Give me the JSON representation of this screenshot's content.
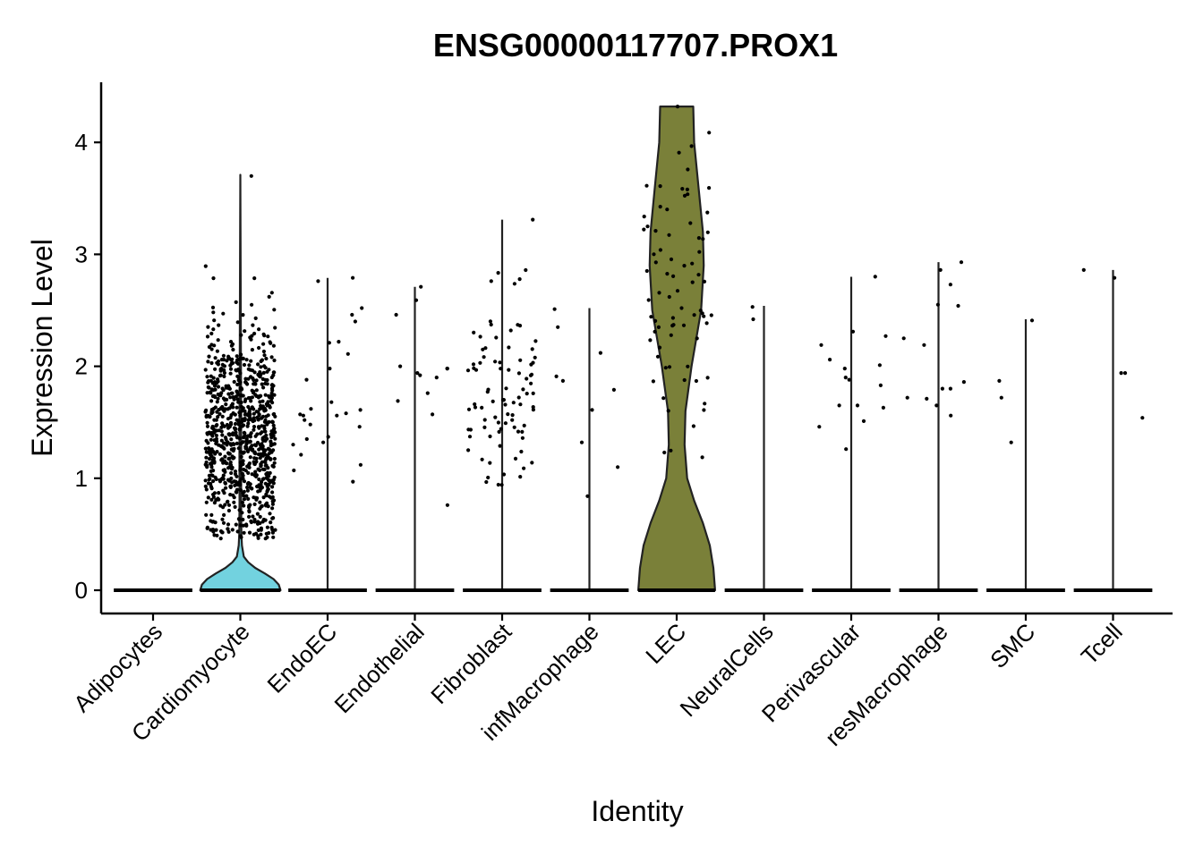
{
  "chart_data": {
    "type": "violin",
    "title": "ENSG00000117707.PROX1",
    "xlabel": "Identity",
    "ylabel": "Expression Level",
    "ylim": [
      -0.2,
      4.55
    ],
    "yticks": [
      0,
      1,
      2,
      3,
      4
    ],
    "legend": "none",
    "grid": false,
    "categories": [
      "Adipocytes",
      "Cardiomyocyte",
      "EndoEC",
      "Endothelial",
      "Fibroblast",
      "infMacrophage",
      "LEC",
      "NeuralCells",
      "Perivascular",
      "resMacrophage",
      "SMC",
      "Tcell"
    ],
    "series": [
      {
        "category": "Adipocytes",
        "color": "#ffffff",
        "max": 0,
        "violin_half_width": [
          [
            0,
            0.45
          ]
        ],
        "points": []
      },
      {
        "category": "Cardiomyocyte",
        "color": "#72d2df",
        "max": 3.71,
        "violin_half_width": [
          [
            0,
            0.46
          ],
          [
            0.05,
            0.44
          ],
          [
            0.1,
            0.38
          ],
          [
            0.15,
            0.28
          ],
          [
            0.2,
            0.17
          ],
          [
            0.25,
            0.09
          ],
          [
            0.3,
            0.04
          ],
          [
            0.4,
            0.018
          ],
          [
            0.5,
            0.012
          ],
          [
            0.8,
            0.009
          ],
          [
            1.2,
            0.01
          ],
          [
            1.6,
            0.009
          ],
          [
            2.2,
            0.006
          ],
          [
            3.0,
            0.003
          ],
          [
            3.71,
            0
          ]
        ],
        "points_jitter": {
          "n": 900,
          "min": 0.46,
          "max": 3.7,
          "mean": 1.35,
          "sd": 0.48
        }
      },
      {
        "category": "EndoEC",
        "color": "#ffffff",
        "max": 2.79,
        "violin_half_width": [
          [
            0,
            0.45
          ]
        ],
        "points": [
          2.76,
          2.79,
          2.21,
          1.98,
          1.48,
          1.3,
          1.32,
          1.12,
          1.07,
          1.21,
          0.97,
          2.22,
          2.11,
          1.61,
          1.56,
          1.46,
          1.57,
          1.68,
          2.4,
          1.62,
          1.35,
          1.37,
          1.52,
          1.88,
          2.52,
          2.46,
          1.58,
          1.56
        ]
      },
      {
        "category": "Endothelial",
        "color": "#ffffff",
        "max": 2.71,
        "violin_half_width": [
          [
            0,
            0.45
          ]
        ],
        "points": [
          1.9,
          2.0,
          1.98,
          1.94,
          2.71,
          1.69,
          0.76,
          1.92,
          1.98,
          2.46,
          1.57,
          1.76,
          2.59
        ]
      },
      {
        "category": "Fibroblast",
        "color": "#ffffff",
        "max": 3.31,
        "violin_half_width": [
          [
            0,
            0.45
          ]
        ],
        "points_jitter": {
          "n": 90,
          "min": 0.93,
          "max": 3.31,
          "mean": 1.8,
          "sd": 0.45
        }
      },
      {
        "category": "infMacrophage",
        "color": "#ffffff",
        "max": 2.52,
        "violin_half_width": [
          [
            0,
            0.45
          ]
        ],
        "points": [
          2.51,
          2.12,
          1.91,
          1.79,
          2.35,
          1.87,
          1.61,
          1.32,
          1.1,
          0.84
        ]
      },
      {
        "category": "LEC",
        "color": "#7a8039",
        "max": 4.32,
        "violin_half_width": [
          [
            0,
            0.44
          ],
          [
            0.2,
            0.42
          ],
          [
            0.4,
            0.38
          ],
          [
            0.6,
            0.3
          ],
          [
            0.8,
            0.2
          ],
          [
            1.0,
            0.12
          ],
          [
            1.3,
            0.09
          ],
          [
            1.6,
            0.1
          ],
          [
            2.0,
            0.17
          ],
          [
            2.5,
            0.28
          ],
          [
            2.9,
            0.31
          ],
          [
            3.2,
            0.3
          ],
          [
            3.6,
            0.25
          ],
          [
            4.0,
            0.2
          ],
          [
            4.32,
            0.19
          ]
        ],
        "points_jitter": {
          "n": 75,
          "min": 0.92,
          "max": 4.32,
          "mean": 2.6,
          "sd": 0.75
        }
      },
      {
        "category": "NeuralCells",
        "color": "#ffffff",
        "max": 2.54,
        "violin_half_width": [
          [
            0,
            0.45
          ]
        ],
        "points": [
          2.42,
          2.53
        ]
      },
      {
        "category": "Perivascular",
        "color": "#ffffff",
        "max": 2.8,
        "violin_half_width": [
          [
            0,
            0.45
          ]
        ],
        "points": [
          2.8,
          2.06,
          1.9,
          1.65,
          1.46,
          1.26,
          1.98,
          2.19,
          1.65,
          2.01,
          1.83,
          2.31,
          2.27,
          1.51,
          1.88,
          1.63
        ]
      },
      {
        "category": "resMacrophage",
        "color": "#ffffff",
        "max": 2.93,
        "violin_half_width": [
          [
            0,
            0.45
          ]
        ],
        "points": [
          2.93,
          2.55,
          2.19,
          2.25,
          1.8,
          1.56,
          1.86,
          1.72,
          1.71,
          2.86,
          2.73,
          2.54,
          1.65,
          1.8
        ]
      },
      {
        "category": "SMC",
        "color": "#ffffff",
        "max": 2.42,
        "violin_half_width": [
          [
            0,
            0.45
          ]
        ],
        "points": [
          2.41,
          1.72,
          1.87,
          1.32
        ]
      },
      {
        "category": "Tcell",
        "color": "#ffffff",
        "max": 2.86,
        "violin_half_width": [
          [
            0,
            0.45
          ]
        ],
        "points": [
          1.54,
          1.94,
          1.94,
          2.86,
          2.79
        ]
      }
    ]
  }
}
